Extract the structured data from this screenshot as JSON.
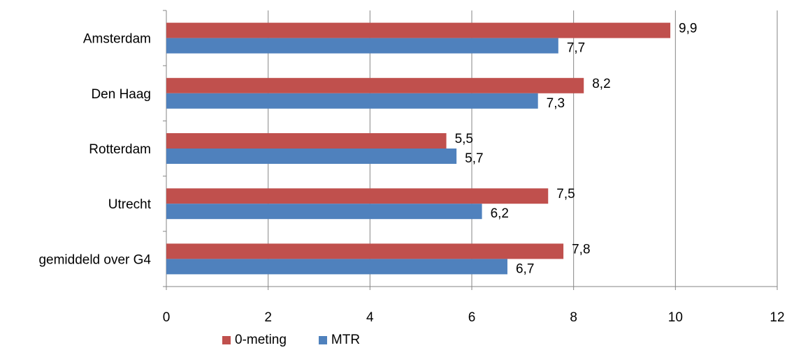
{
  "chart_data": {
    "type": "bar",
    "orientation": "horizontal",
    "categories": [
      "Amsterdam",
      "Den Haag",
      "Rotterdam",
      "Utrecht",
      "gemiddeld over G4"
    ],
    "series": [
      {
        "name": "0-meting",
        "color": "#C0504D",
        "values": [
          9.9,
          8.2,
          5.5,
          7.5,
          7.8
        ],
        "labels": [
          "9,9",
          "8,2",
          "5,5",
          "7,5",
          "7,8"
        ]
      },
      {
        "name": "MTR",
        "color": "#4F81BD",
        "values": [
          7.7,
          7.3,
          5.7,
          6.2,
          6.7
        ],
        "labels": [
          "7,7",
          "7,3",
          "5,7",
          "6,2",
          "6,7"
        ]
      }
    ],
    "xlim": [
      0,
      12
    ],
    "x_ticks": [
      "0",
      "2",
      "4",
      "6",
      "8",
      "10",
      "12"
    ],
    "grid": "vertical",
    "legend": "bottom"
  }
}
